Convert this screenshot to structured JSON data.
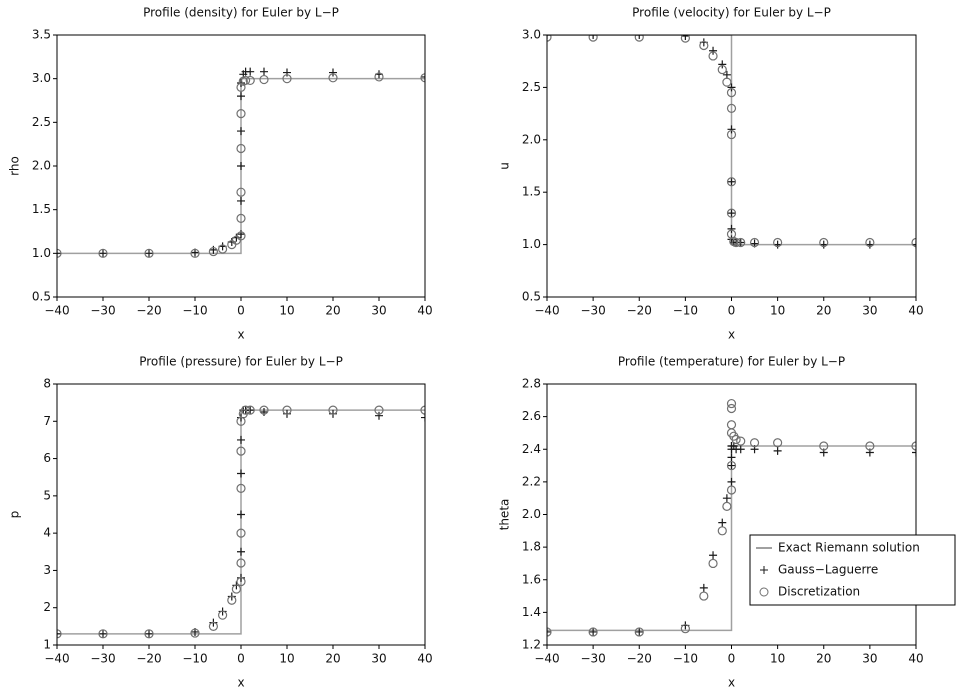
{
  "chart_data": [
    {
      "type": "line",
      "title": "Profile (density) for Euler by L−P",
      "xlabel": "x",
      "ylabel": "rho",
      "xlim": [
        -40,
        40
      ],
      "ylim": [
        0.5,
        3.5
      ],
      "xticks": [
        {
          "value": -40,
          "label": "−40"
        },
        {
          "value": -30,
          "label": "−30"
        },
        {
          "value": -20,
          "label": "−20"
        },
        {
          "value": -10,
          "label": "−10"
        },
        0,
        10,
        20,
        30,
        40
      ],
      "yticks": [
        0.5,
        {
          "value": 1,
          "label": "1.0"
        },
        1.5,
        {
          "value": 2,
          "label": "2.0"
        },
        2.5,
        {
          "value": 3,
          "label": "3.0"
        },
        3.5
      ],
      "series": [
        {
          "color": "#a0a0a0",
          "x": [
            -40,
            0,
            0,
            40
          ],
          "values": [
            1,
            1,
            3,
            3
          ]
        },
        {
          "color": "#1a1a1a",
          "marker": "+",
          "x": [
            -40,
            -30,
            -20,
            -10,
            -6,
            -4,
            -2,
            -1,
            0,
            0,
            0,
            0,
            0,
            0,
            0.5,
            1,
            2,
            5,
            10,
            20,
            30,
            40
          ],
          "values": [
            1,
            1,
            1,
            1.01,
            1.04,
            1.08,
            1.13,
            1.18,
            1.22,
            1.6,
            2.0,
            2.4,
            2.8,
            2.95,
            3.05,
            3.08,
            3.08,
            3.08,
            3.07,
            3.07,
            3.05,
            3.02
          ]
        },
        {
          "color": "#707070",
          "marker": "o",
          "x": [
            -40,
            -30,
            -20,
            -10,
            -6,
            -4,
            -2,
            -1,
            0,
            0,
            0,
            0,
            0,
            0,
            0.5,
            1,
            2,
            5,
            10,
            20,
            30,
            40
          ],
          "values": [
            1,
            1,
            1,
            1,
            1.02,
            1.05,
            1.1,
            1.15,
            1.2,
            1.4,
            1.7,
            2.2,
            2.6,
            2.9,
            2.97,
            2.98,
            2.98,
            2.99,
            3.0,
            3.01,
            3.02,
            3.01
          ]
        }
      ]
    },
    {
      "type": "line",
      "title": "Profile (velocity) for Euler by L−P",
      "xlabel": "x",
      "ylabel": "u",
      "xlim": [
        -40,
        40
      ],
      "ylim": [
        0.5,
        3
      ],
      "xticks": [
        {
          "value": -40,
          "label": "−40"
        },
        {
          "value": -30,
          "label": "−30"
        },
        {
          "value": -20,
          "label": "−20"
        },
        {
          "value": -10,
          "label": "−10"
        },
        0,
        10,
        20,
        30,
        40
      ],
      "yticks": [
        0.5,
        {
          "value": 1,
          "label": "1.0"
        },
        1.5,
        {
          "value": 2,
          "label": "2.0"
        },
        2.5,
        {
          "value": 3,
          "label": "3.0"
        }
      ],
      "series": [
        {
          "color": "#a0a0a0",
          "x": [
            -40,
            0,
            0,
            40
          ],
          "values": [
            3,
            3,
            1,
            1
          ]
        },
        {
          "color": "#1a1a1a",
          "marker": "+",
          "x": [
            -40,
            -30,
            -20,
            -10,
            -6,
            -4,
            -2,
            -1,
            0,
            0,
            0,
            0,
            0,
            0,
            0.5,
            1,
            2,
            5,
            10,
            20,
            30,
            40
          ],
          "values": [
            3,
            3,
            3,
            2.99,
            2.93,
            2.85,
            2.72,
            2.62,
            2.5,
            2.1,
            1.6,
            1.3,
            1.15,
            1.05,
            1.02,
            1.02,
            1.02,
            1.01,
            1.0,
            1.0,
            1.0,
            1.0
          ]
        },
        {
          "color": "#707070",
          "marker": "o",
          "x": [
            -40,
            -30,
            -20,
            -10,
            -6,
            -4,
            -2,
            -1,
            0,
            0,
            0,
            0,
            0,
            0,
            0.5,
            1,
            2,
            5,
            10,
            20,
            30,
            40
          ],
          "values": [
            2.98,
            2.98,
            2.98,
            2.97,
            2.9,
            2.8,
            2.67,
            2.55,
            2.45,
            2.3,
            2.05,
            1.6,
            1.3,
            1.1,
            1.03,
            1.02,
            1.02,
            1.02,
            1.02,
            1.02,
            1.02,
            1.02
          ]
        }
      ]
    },
    {
      "type": "line",
      "title": "Profile (pressure) for Euler by L−P",
      "xlabel": "x",
      "ylabel": "p",
      "xlim": [
        -40,
        40
      ],
      "ylim": [
        1,
        8
      ],
      "xticks": [
        {
          "value": -40,
          "label": "−40"
        },
        {
          "value": -30,
          "label": "−30"
        },
        {
          "value": -20,
          "label": "−20"
        },
        {
          "value": -10,
          "label": "−10"
        },
        0,
        10,
        20,
        30,
        40
      ],
      "yticks": [
        1,
        2,
        3,
        4,
        5,
        6,
        7,
        8
      ],
      "series": [
        {
          "color": "#a0a0a0",
          "x": [
            -40,
            0,
            0,
            40
          ],
          "values": [
            1.3,
            1.3,
            7.3,
            7.3
          ]
        },
        {
          "color": "#1a1a1a",
          "marker": "+",
          "x": [
            -40,
            -30,
            -20,
            -10,
            -6,
            -4,
            -2,
            -1,
            0,
            0,
            0,
            0,
            0,
            0,
            0.5,
            1,
            2,
            5,
            10,
            20,
            30,
            40
          ],
          "values": [
            1.3,
            1.3,
            1.3,
            1.35,
            1.6,
            1.9,
            2.3,
            2.6,
            2.8,
            3.5,
            4.5,
            5.6,
            6.5,
            7.1,
            7.3,
            7.3,
            7.3,
            7.25,
            7.2,
            7.2,
            7.15,
            7.1
          ]
        },
        {
          "color": "#707070",
          "marker": "o",
          "x": [
            -40,
            -30,
            -20,
            -10,
            -6,
            -4,
            -2,
            -1,
            0,
            0,
            0,
            0,
            0,
            0,
            0.5,
            1,
            2,
            5,
            10,
            20,
            30,
            40
          ],
          "values": [
            1.3,
            1.3,
            1.3,
            1.32,
            1.5,
            1.8,
            2.2,
            2.5,
            2.7,
            3.2,
            4.0,
            5.2,
            6.2,
            7.0,
            7.2,
            7.3,
            7.3,
            7.3,
            7.3,
            7.3,
            7.3,
            7.3
          ]
        }
      ]
    },
    {
      "type": "line",
      "title": "Profile (temperature) for Euler by L−P",
      "xlabel": "x",
      "ylabel": "theta",
      "xlim": [
        -40,
        40
      ],
      "ylim": [
        1.2,
        2.8
      ],
      "legend": "center right",
      "xticks": [
        {
          "value": -40,
          "label": "−40"
        },
        {
          "value": -30,
          "label": "−30"
        },
        {
          "value": -20,
          "label": "−20"
        },
        {
          "value": -10,
          "label": "−10"
        },
        0,
        10,
        20,
        30,
        40
      ],
      "yticks": [
        1.2,
        1.4,
        1.6,
        1.8,
        {
          "value": 2,
          "label": "2.0"
        },
        2.2,
        2.4,
        2.6,
        2.8
      ],
      "series": [
        {
          "name": "Exact Riemann solution",
          "color": "#a0a0a0",
          "x": [
            -40,
            0,
            0,
            40
          ],
          "values": [
            1.29,
            1.29,
            2.42,
            2.42
          ]
        },
        {
          "name": "Gauss−Laguerre",
          "color": "#1a1a1a",
          "marker": "+",
          "x": [
            -40,
            -30,
            -20,
            -10,
            -6,
            -4,
            -2,
            -1,
            0,
            0,
            0,
            0,
            0,
            0,
            0.5,
            1,
            2,
            5,
            10,
            20,
            30,
            40
          ],
          "values": [
            1.28,
            1.28,
            1.28,
            1.32,
            1.55,
            1.75,
            1.95,
            2.1,
            2.2,
            2.3,
            2.35,
            2.4,
            2.42,
            2.42,
            2.42,
            2.4,
            2.4,
            2.4,
            2.39,
            2.38,
            2.38,
            2.38
          ]
        },
        {
          "name": "Discretization",
          "color": "#707070",
          "marker": "o",
          "x": [
            -40,
            -30,
            -20,
            -10,
            -6,
            -4,
            -2,
            -1,
            0,
            0,
            0,
            0,
            0,
            0,
            0.5,
            1,
            2,
            5,
            10,
            20,
            30,
            40
          ],
          "values": [
            1.28,
            1.28,
            1.28,
            1.3,
            1.5,
            1.7,
            1.9,
            2.05,
            2.15,
            2.3,
            2.5,
            2.68,
            2.65,
            2.55,
            2.48,
            2.46,
            2.45,
            2.44,
            2.44,
            2.42,
            2.42,
            2.42
          ]
        }
      ]
    }
  ]
}
